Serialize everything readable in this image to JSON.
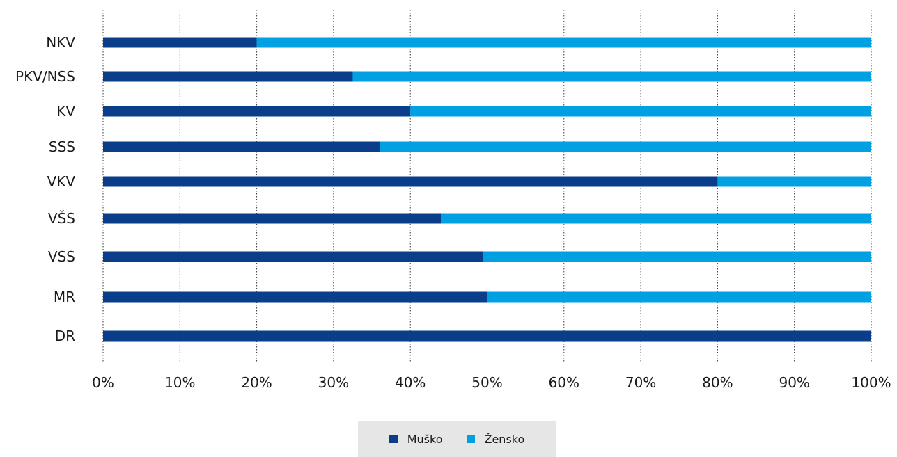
{
  "chart_data": {
    "type": "bar",
    "orientation": "horizontal",
    "stacked": true,
    "categories": [
      "NKV",
      "PKV/NSS",
      "KV",
      "SSS",
      "VKV",
      "VŠS",
      "VSS",
      "MR",
      "DR"
    ],
    "series": [
      {
        "name": "Muško",
        "color": "#0a3d8a",
        "values": [
          20,
          32.5,
          40,
          36,
          80,
          44,
          49.5,
          50,
          100
        ]
      },
      {
        "name": "Žensko",
        "color": "#00a0e3",
        "values": [
          80,
          67.5,
          60,
          64,
          20,
          56,
          50.5,
          50,
          0
        ]
      }
    ],
    "xlim": [
      0,
      100
    ],
    "xticks": [
      "0%",
      "10%",
      "20%",
      "30%",
      "40%",
      "50%",
      "60%",
      "70%",
      "80%",
      "90%",
      "100%"
    ],
    "grid": "vertical dotted",
    "legend_position": "bottom"
  }
}
